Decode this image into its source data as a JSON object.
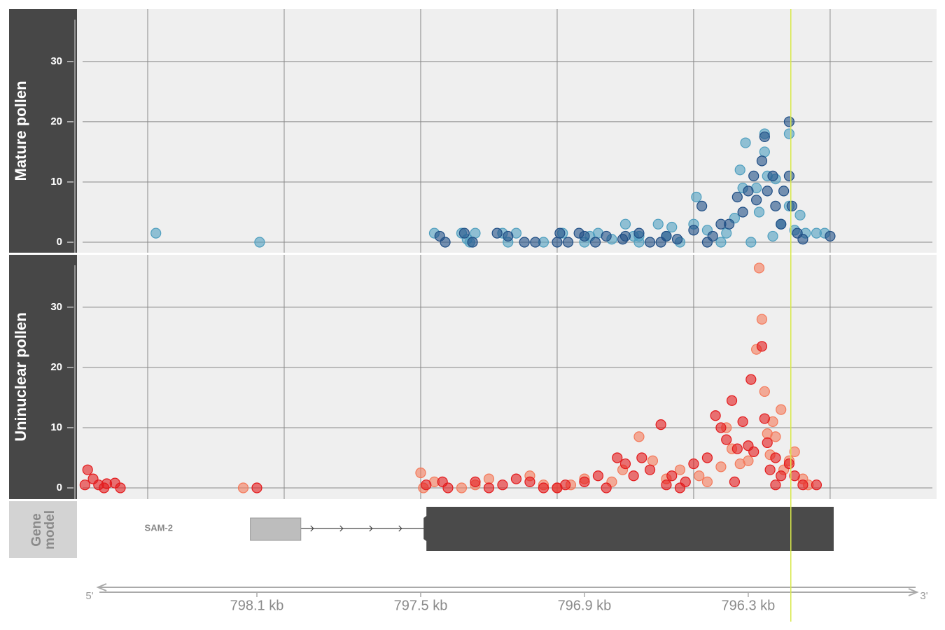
{
  "chart_data": [
    {
      "type": "scatter",
      "ylabel": "Mature pollen",
      "xlim": [
        798.759,
        795.61
      ],
      "ylim": [
        -1.74,
        38.7
      ],
      "xticks": [
        798.5,
        798,
        797.5,
        797,
        796.5,
        796
      ],
      "yticks": [
        0,
        10,
        20,
        30
      ],
      "grid": true,
      "series": [
        {
          "color": "#4f9fbf",
          "x": [
            798.47,
            798.09,
            797.45,
            797.35,
            797.33,
            797.32,
            797.3,
            797.2,
            797.18,
            797.15,
            797.05,
            796.98,
            796.9,
            796.85,
            796.75,
            796.72,
            796.7,
            796.63,
            796.6,
            796.55,
            796.5,
            796.49,
            796.45,
            796.4,
            796.38,
            796.35,
            796.33,
            796.32,
            796.31,
            796.29,
            796.27,
            796.26,
            796.24,
            796.24,
            796.23,
            796.21,
            796.2,
            796.18,
            796.15,
            796.15,
            796.13,
            796.11,
            796.09,
            796.05,
            796.02,
            796.7,
            796.88,
            796.8,
            796.58
          ],
          "values": [
            1.5,
            0,
            1.5,
            1.5,
            0.5,
            0,
            1.5,
            1.5,
            0,
            1.5,
            0,
            1.5,
            0,
            1.5,
            3,
            1,
            0,
            3,
            1,
            0,
            3,
            7.5,
            2,
            0,
            1.5,
            4,
            12,
            9,
            16.5,
            0,
            9,
            5,
            18,
            15,
            11,
            1,
            10.5,
            3,
            18,
            6,
            2,
            4.5,
            1.5,
            1.5,
            1.5,
            1,
            1,
            0.5,
            2.5
          ]
        },
        {
          "color": "#1f4e85",
          "x": [
            797.43,
            797.41,
            797.34,
            797.31,
            797.22,
            797.18,
            797.12,
            797.08,
            796.99,
            796.96,
            796.92,
            796.86,
            796.82,
            796.76,
            796.7,
            796.66,
            796.6,
            796.56,
            796.5,
            796.47,
            796.43,
            796.4,
            796.37,
            796.34,
            796.32,
            796.3,
            796.28,
            796.27,
            796.25,
            796.24,
            796.23,
            796.21,
            796.2,
            796.18,
            796.17,
            796.15,
            796.15,
            796.14,
            796.12,
            796.1,
            796.0,
            796.45,
            796.62,
            796.75,
            796.9,
            797.0
          ],
          "values": [
            1,
            0,
            1.5,
            0,
            1.5,
            1,
            0,
            0,
            1.5,
            0,
            1.5,
            0,
            1,
            0.5,
            1.5,
            0,
            1,
            0.5,
            2,
            6,
            1,
            3,
            3,
            7.5,
            5,
            8.5,
            11,
            7,
            13.5,
            17.5,
            8.5,
            11,
            6,
            3,
            8.5,
            20,
            11,
            6,
            1.5,
            0.5,
            1,
            0,
            0,
            1,
            1,
            0
          ]
        }
      ]
    },
    {
      "type": "scatter",
      "ylabel": "Uninuclear pollen",
      "xlim": [
        798.759,
        795.61
      ],
      "ylim": [
        -1.86,
        38.7
      ],
      "xticks": [
        798.5,
        798,
        797.5,
        797,
        796.5,
        796
      ],
      "yticks": [
        0,
        10,
        20,
        30
      ],
      "grid": true,
      "series": [
        {
          "color": "#f4795a",
          "x": [
            798.15,
            797.5,
            797.49,
            797.45,
            797.3,
            797.25,
            797.1,
            797.05,
            796.9,
            796.8,
            796.76,
            796.7,
            796.65,
            796.6,
            796.55,
            796.48,
            796.4,
            796.36,
            796.33,
            796.3,
            796.27,
            796.24,
            796.23,
            796.22,
            796.21,
            796.2,
            796.18,
            796.17,
            796.15,
            796.13,
            796.1,
            796.08,
            797.35,
            797.0,
            796.95,
            796.45,
            796.38,
            796.26,
            796.25
          ],
          "values": [
            0,
            2.5,
            0,
            1,
            0.5,
            1.5,
            2,
            0.5,
            1.5,
            1,
            3,
            8.5,
            4.5,
            1.5,
            3,
            2,
            3.5,
            6.5,
            4,
            4.5,
            23,
            16,
            9,
            5.5,
            11,
            8.5,
            13,
            3,
            4.5,
            6,
            1.5,
            0.5,
            0,
            0,
            0.5,
            1,
            10,
            36.5,
            28
          ]
        },
        {
          "color": "#e31a1c",
          "x": [
            798.72,
            798.73,
            798.7,
            798.68,
            798.66,
            798.65,
            798.62,
            798.6,
            798.1,
            797.48,
            797.42,
            797.4,
            797.3,
            797.2,
            797.15,
            797.1,
            797.0,
            796.97,
            796.9,
            796.85,
            796.82,
            796.78,
            796.75,
            796.72,
            796.69,
            796.66,
            796.62,
            796.58,
            796.53,
            796.5,
            796.45,
            796.42,
            796.4,
            796.38,
            796.36,
            796.34,
            796.32,
            796.3,
            796.29,
            796.28,
            796.25,
            796.24,
            796.23,
            796.22,
            796.2,
            796.18,
            796.15,
            796.13,
            796.1,
            796.05,
            796.6,
            796.55,
            796.35,
            796.2,
            797.25,
            797.05
          ],
          "values": [
            3,
            0.5,
            1.5,
            0.5,
            0,
            0.7,
            0.8,
            0,
            0,
            0.5,
            1,
            0,
            1,
            0.5,
            1.5,
            1,
            0,
            0.5,
            1,
            2,
            0,
            5,
            4,
            2,
            5,
            3,
            10.5,
            2,
            1,
            4,
            5,
            12,
            10,
            8,
            14.5,
            6.5,
            11,
            7,
            18,
            6,
            23.5,
            11.5,
            7.5,
            3,
            5,
            2,
            4,
            2,
            0.5,
            0.5,
            0.5,
            0,
            1,
            0.5,
            0,
            0
          ]
        }
      ]
    }
  ],
  "highlight": {
    "x": 796.144,
    "color": "#d8e84a"
  },
  "gene_model": {
    "label": "Gene model",
    "name": "SAM-2",
    "utr": [
      798.124,
      797.939
    ],
    "cds": [
      797.479,
      795.987
    ]
  },
  "genome_axis": {
    "xlim": [
      798.759,
      795.61
    ],
    "start_label": "5'",
    "end_label": "3'",
    "ticks": [
      {
        "value": 798.1,
        "label": "798.1 kb"
      },
      {
        "value": 797.5,
        "label": "797.5 kb"
      },
      {
        "value": 796.9,
        "label": "796.9 kb"
      },
      {
        "value": 796.3,
        "label": "796.3 kb"
      }
    ]
  }
}
